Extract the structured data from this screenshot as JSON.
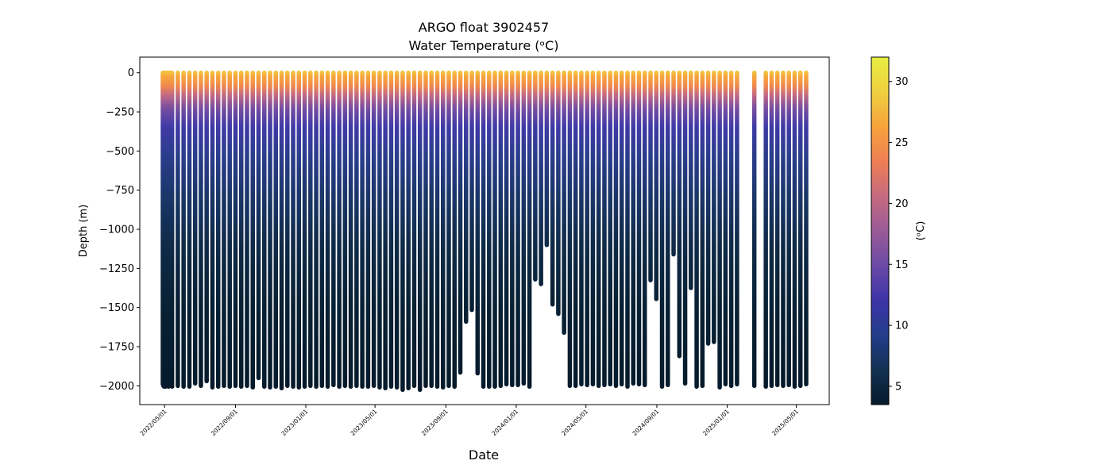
{
  "chart_data": {
    "type": "scatter",
    "title": "ARGO float 3902457",
    "subtitle": "Water Temperature (ᵒC)",
    "xlabel": "Date",
    "ylabel": "Depth (m)",
    "ylim": [
      -2120,
      100
    ],
    "y_ticks": [
      0,
      -250,
      -500,
      -750,
      -1000,
      -1250,
      -1500,
      -1750,
      -2000
    ],
    "y_tick_labels": [
      "0",
      "−250",
      "−500",
      "−750",
      "−1000",
      "−1250",
      "−1500",
      "−1750",
      "−2000"
    ],
    "xlim": [
      "2022-03-19",
      "2025-06-27"
    ],
    "x_ticks": [
      "2022-05-01",
      "2022-09-01",
      "2023-01-01",
      "2023-05-01",
      "2023-09-01",
      "2024-01-01",
      "2024-05-01",
      "2024-09-01",
      "2025-01-01",
      "2025-05-01"
    ],
    "x_tick_labels": [
      "2022/05/01",
      "2022/09/01",
      "2023/01/01",
      "2023/05/01",
      "2023/09/01",
      "2024/01/01",
      "2024/05/01",
      "2024/09/01",
      "2025/01/01",
      "2025/05/01"
    ],
    "colorbar": {
      "label": "(ᵒC)",
      "range": [
        3.5,
        32
      ],
      "ticks": [
        5,
        10,
        15,
        20,
        25,
        30
      ],
      "tick_labels": [
        "5",
        "10",
        "15",
        "20",
        "25",
        "30"
      ],
      "colormap": [
        "#061a2b",
        "#123152",
        "#233d8a",
        "#3c34a8",
        "#6a4aa6",
        "#9a5b98",
        "#c66a7f",
        "#ee7f54",
        "#f7a33c",
        "#efd040",
        "#e8ee43"
      ]
    },
    "series": [
      {
        "profile_dates": [
          "2022-04-28",
          "2022-04-29",
          "2022-04-30",
          "2022-05-01",
          "2022-05-02",
          "2022-05-03",
          "2022-05-04",
          "2022-05-05",
          "2022-05-06",
          "2022-05-07",
          "2022-05-08",
          "2022-05-09",
          "2022-05-10",
          "2022-05-14",
          "2022-05-24",
          "2022-06-03",
          "2022-06-13",
          "2022-06-23",
          "2022-07-03",
          "2022-07-13",
          "2022-07-23",
          "2022-08-02",
          "2022-08-12",
          "2022-08-22",
          "2022-09-01",
          "2022-09-11",
          "2022-09-21",
          "2022-10-01",
          "2022-10-11",
          "2022-10-21",
          "2022-10-31",
          "2022-11-10",
          "2022-11-20",
          "2022-11-30",
          "2022-12-10",
          "2022-12-20",
          "2022-12-30",
          "2023-01-09",
          "2023-01-19",
          "2023-01-29",
          "2023-02-08",
          "2023-02-18",
          "2023-02-28",
          "2023-03-10",
          "2023-03-20",
          "2023-03-30",
          "2023-04-09",
          "2023-04-19",
          "2023-04-29",
          "2023-05-09",
          "2023-05-19",
          "2023-05-29",
          "2023-06-08",
          "2023-06-18",
          "2023-06-28",
          "2023-07-08",
          "2023-07-18",
          "2023-07-28",
          "2023-08-07",
          "2023-08-17",
          "2023-08-27",
          "2023-09-06",
          "2023-09-16",
          "2023-09-26",
          "2023-10-06",
          "2023-10-16",
          "2023-10-26",
          "2023-11-05",
          "2023-11-15",
          "2023-11-25",
          "2023-12-05",
          "2023-12-15",
          "2023-12-25",
          "2024-01-04",
          "2024-01-14",
          "2024-01-24",
          "2024-02-03",
          "2024-02-13",
          "2024-02-23",
          "2024-03-04",
          "2024-03-14",
          "2024-03-24",
          "2024-04-03",
          "2024-04-13",
          "2024-04-23",
          "2024-05-03",
          "2024-05-13",
          "2024-05-23",
          "2024-06-02",
          "2024-06-12",
          "2024-06-22",
          "2024-07-02",
          "2024-07-12",
          "2024-07-22",
          "2024-08-01",
          "2024-08-11",
          "2024-08-21",
          "2024-08-31",
          "2024-09-10",
          "2024-09-20",
          "2024-09-30",
          "2024-10-10",
          "2024-10-20",
          "2024-10-30",
          "2024-11-09",
          "2024-11-19",
          "2024-11-29",
          "2024-12-09",
          "2024-12-19",
          "2024-12-29",
          "2025-01-08",
          "2025-01-18",
          "2025-02-17",
          "2025-03-09",
          "2025-03-19",
          "2025-03-29",
          "2025-04-08",
          "2025-04-18",
          "2025-04-28",
          "2025-05-08",
          "2025-05-18"
        ],
        "max_depth": [
          -1990,
          -2000,
          -2005,
          -1995,
          -2000,
          -2005,
          -1995,
          -2000,
          -1990,
          -2000,
          -2005,
          -1995,
          -2000,
          -2005,
          -2000,
          -2005,
          -2005,
          -1985,
          -2000,
          -1970,
          -2010,
          -2005,
          -2000,
          -2005,
          -2000,
          -2005,
          -2000,
          -2010,
          -1950,
          -2005,
          -2010,
          -2005,
          -2015,
          -2000,
          -2005,
          -2010,
          -2005,
          -2000,
          -2005,
          -2000,
          -2005,
          -1995,
          -2005,
          -2000,
          -2005,
          -2000,
          -2005,
          -2005,
          -2000,
          -2010,
          -2015,
          -2005,
          -2010,
          -2025,
          -2015,
          -2000,
          -2025,
          -2000,
          -2000,
          -2005,
          -2010,
          -2000,
          -2005,
          -1915,
          -1590,
          -1515,
          -1920,
          -2005,
          -2005,
          -2005,
          -2000,
          -1990,
          -1995,
          -1995,
          -1985,
          -2005,
          -1320,
          -1350,
          -1100,
          -1480,
          -1540,
          -1660,
          -2000,
          -2000,
          -1990,
          -1995,
          -1990,
          -2000,
          -1995,
          -1990,
          -2000,
          -1990,
          -2005,
          -1985,
          -1990,
          -1995,
          -1325,
          -1445,
          -2005,
          -1995,
          -1160,
          -1810,
          -1985,
          -1375,
          -2005,
          -2000,
          -1730,
          -1720,
          -2010,
          -1990,
          -2000,
          -1990,
          -2000,
          -2005,
          -2000,
          -1995,
          -2000,
          -1995,
          -2005,
          -2000,
          -1990
        ]
      }
    ]
  }
}
